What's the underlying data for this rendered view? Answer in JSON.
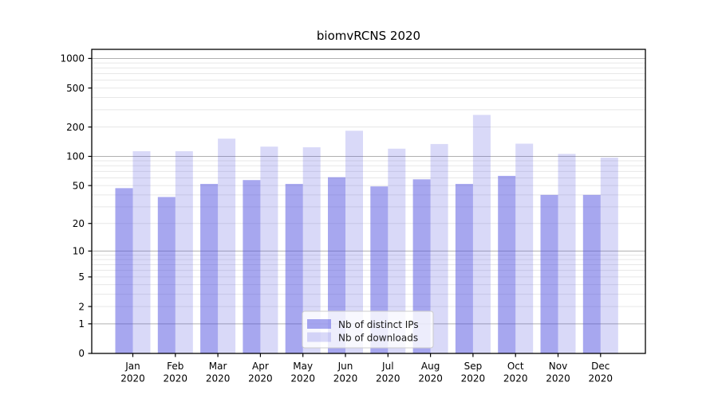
{
  "title": "biomvRCNS 2020",
  "chart_data": {
    "type": "bar",
    "title": "biomvRCNS 2020",
    "categories": [
      "Jan",
      "Feb",
      "Mar",
      "Apr",
      "May",
      "Jun",
      "Jul",
      "Aug",
      "Sep",
      "Oct",
      "Nov",
      "Dec"
    ],
    "category_year": "2020",
    "series": [
      {
        "name": "Nb of distinct IPs",
        "color": "rgba(80,80,224,0.50)",
        "values": [
          47,
          38,
          52,
          57,
          52,
          61,
          49,
          58,
          52,
          63,
          40,
          40
        ]
      },
      {
        "name": "Nb of downloads",
        "color": "rgba(80,80,224,0.22)",
        "values": [
          113,
          113,
          152,
          126,
          124,
          183,
          120,
          134,
          266,
          135,
          106,
          97
        ]
      }
    ],
    "yscale": "log1p",
    "yticks": [
      1000,
      500,
      200,
      100,
      50,
      20,
      10,
      5,
      2,
      1,
      0
    ],
    "ylim": [
      0,
      1240
    ],
    "grid": true,
    "legend_position": "lower center",
    "colors": {
      "grid_major": "#b0b0b0",
      "grid_minor": "#e7e7e7",
      "axis": "#000000",
      "legend_border": "#cccccc",
      "legend_bg": "rgba(255,255,255,0.8)"
    }
  },
  "legend": {
    "items": [
      {
        "label": "Nb of distinct IPs"
      },
      {
        "label": "Nb of downloads"
      }
    ]
  }
}
